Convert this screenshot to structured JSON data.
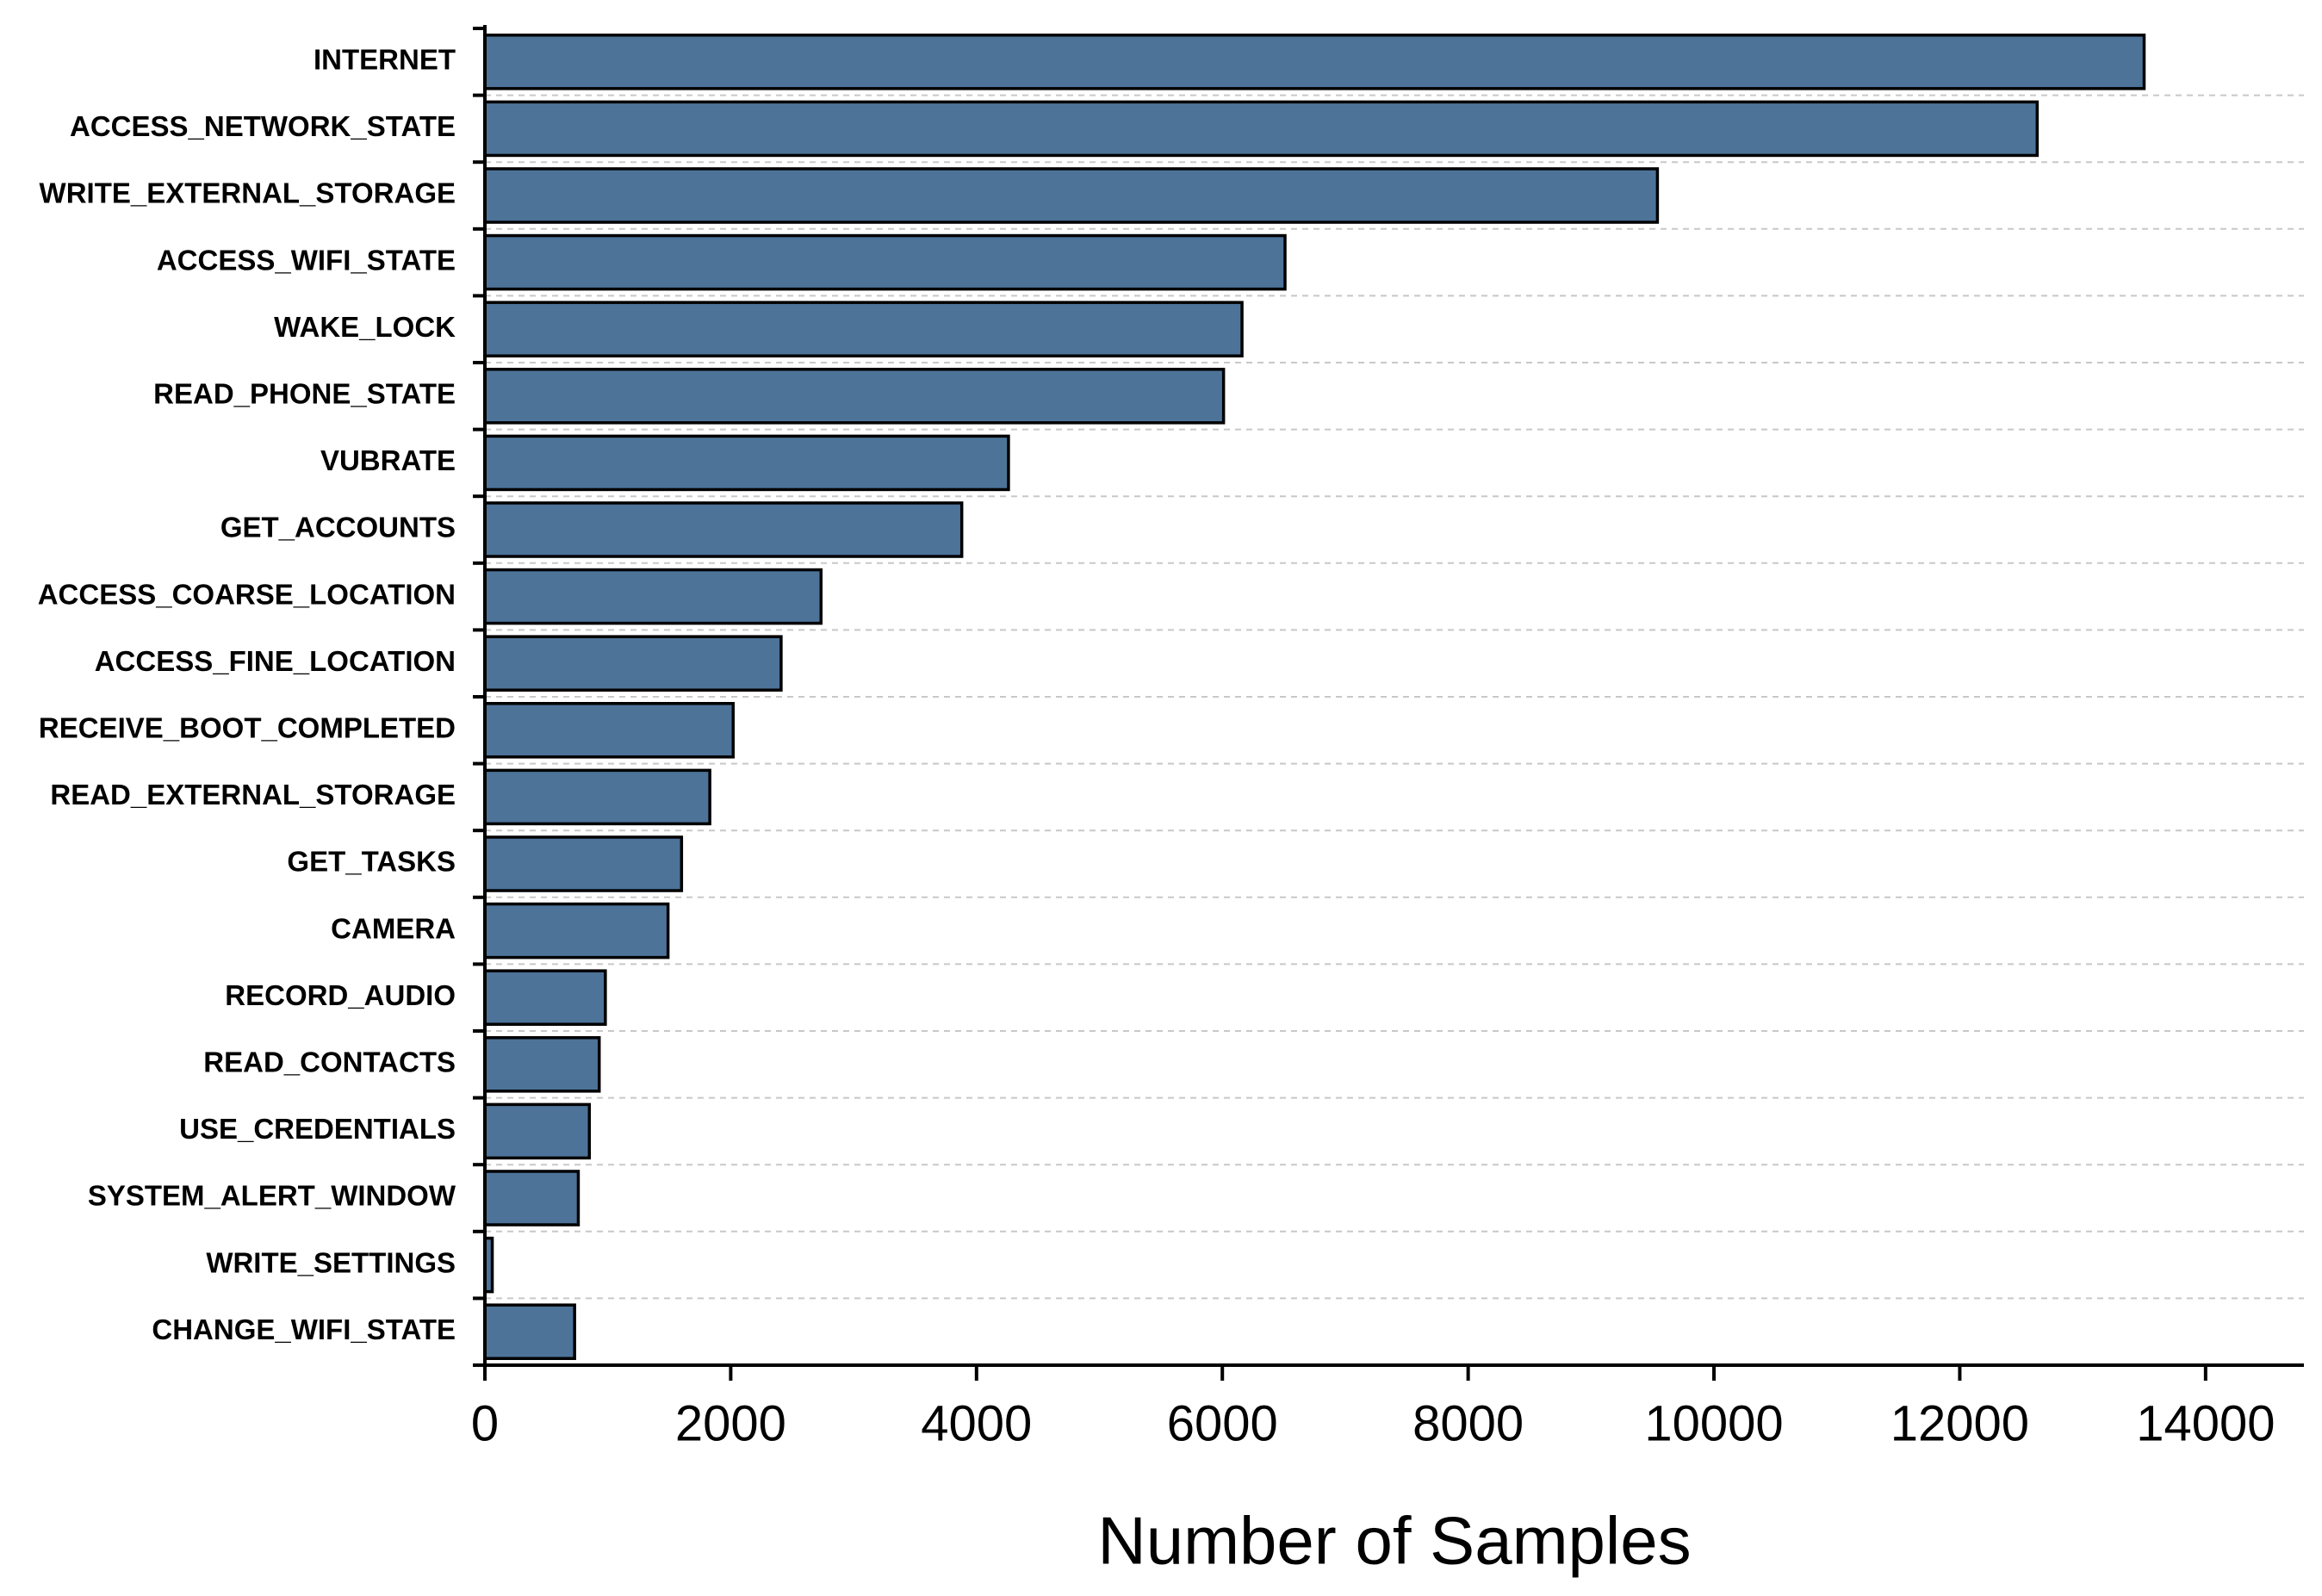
{
  "chart_data": {
    "type": "hbar",
    "x_label": "Number of Samples",
    "categories": [
      "INTERNET",
      "ACCESS_NETWORK_STATE",
      "WRITE_EXTERNAL_STORAGE",
      "ACCESS_WIFI_STATE",
      "WAKE_LOCK",
      "READ_PHONE_STATE",
      "VUBRATE",
      "GET_ACCOUNTS",
      "ACCESS_COARSE_LOCATION",
      "ACCESS_FINE_LOCATION",
      "RECEIVE_BOOT_COMPLETED",
      "READ_EXTERNAL_STORAGE",
      "GET_TASKS",
      "CAMERA",
      "RECORD_AUDIO",
      "READ_CONTACTS",
      "USE_CREDENTIALS",
      "SYSTEM_ALERT_WINDOW",
      "WRITE_SETTINGS",
      "CHANGE_WIFI_STATE"
    ],
    "values": [
      13500,
      12630,
      9540,
      6510,
      6160,
      6010,
      4260,
      3880,
      2735,
      2410,
      2020,
      1830,
      1600,
      1490,
      980,
      930,
      850,
      760,
      60,
      730
    ],
    "color": "#4d7399",
    "xlim": [
      0,
      14800
    ],
    "xticks": [
      0,
      2000,
      4000,
      6000,
      8000,
      10000,
      12000,
      14000
    ],
    "grid": true
  }
}
